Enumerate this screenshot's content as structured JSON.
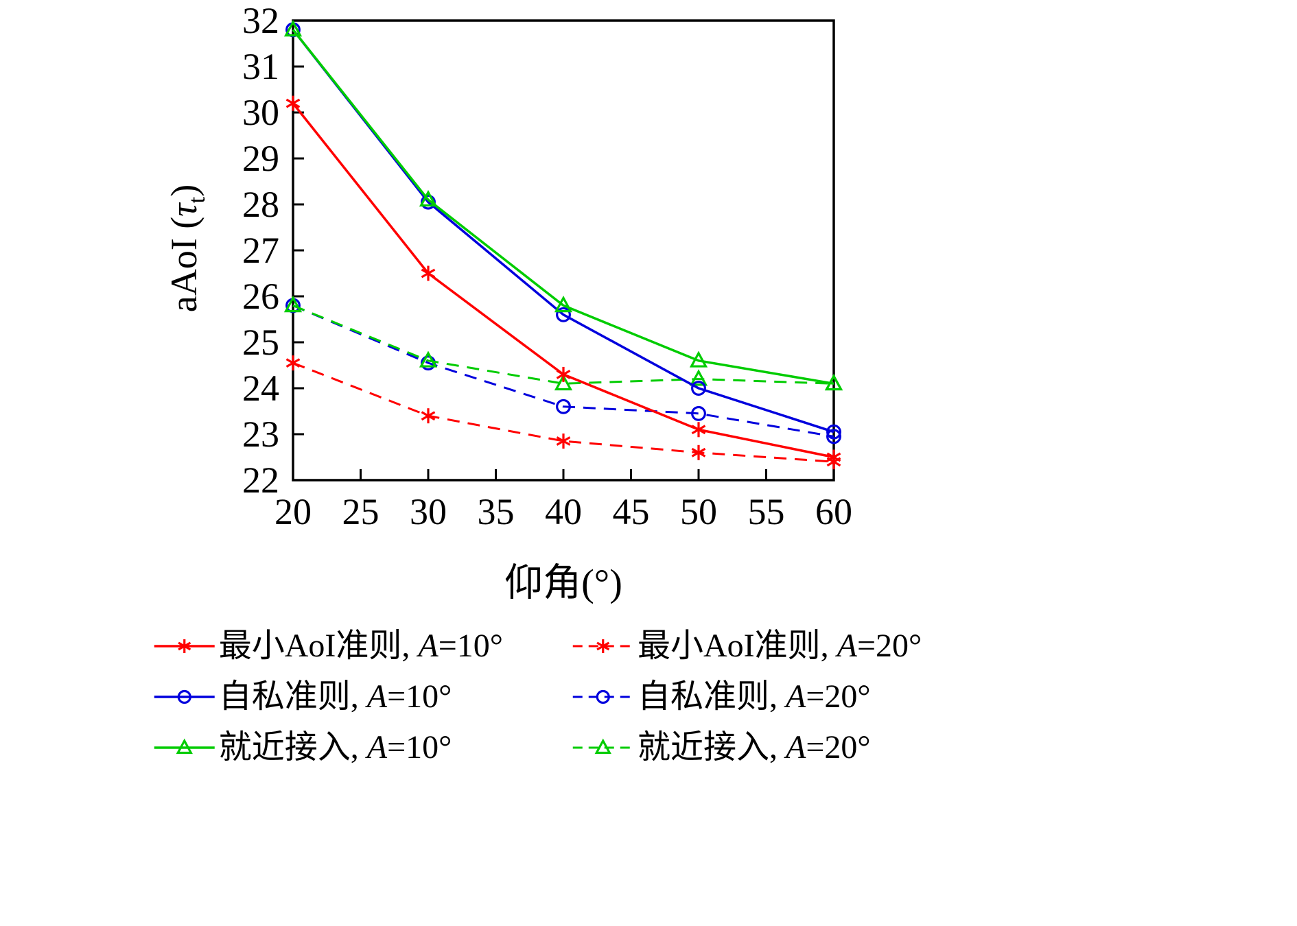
{
  "figure": {
    "background": "#ffffff"
  },
  "chart_data": {
    "type": "line",
    "title": "",
    "xlabel": "仰角(°)",
    "ylabel": "aAoI (τt)",
    "ylabel_parts": {
      "prefix": "aAoI (",
      "tau": "τ",
      "sub": "t",
      "suffix": ")"
    },
    "xlim": [
      20,
      60
    ],
    "ylim": [
      22,
      32
    ],
    "xticks": [
      20,
      25,
      30,
      35,
      40,
      45,
      50,
      55,
      60
    ],
    "yticks": [
      22,
      23,
      24,
      25,
      26,
      27,
      28,
      29,
      30,
      31,
      32
    ],
    "x": [
      20,
      30,
      40,
      50,
      60
    ],
    "grid": false,
    "legend_position": "below",
    "colors": {
      "red": "#ff0000",
      "blue": "#0000dd",
      "green": "#00cc00",
      "axis": "#000000"
    },
    "series": [
      {
        "name": "最小AoI准则, A=10°",
        "color": "#ff0000",
        "style": "solid",
        "marker": "asterisk",
        "values": [
          30.2,
          26.5,
          24.3,
          23.1,
          22.5
        ]
      },
      {
        "name": "最小AoI准则, A=20°",
        "color": "#ff0000",
        "style": "dashed",
        "marker": "asterisk",
        "values": [
          24.55,
          23.4,
          22.85,
          22.6,
          22.4
        ]
      },
      {
        "name": "自私准则, A=10°",
        "color": "#0000dd",
        "style": "solid",
        "marker": "circle",
        "values": [
          31.8,
          28.05,
          25.6,
          24.0,
          23.05
        ]
      },
      {
        "name": "自私准则, A=20°",
        "color": "#0000dd",
        "style": "dashed",
        "marker": "circle",
        "values": [
          25.8,
          24.55,
          23.6,
          23.45,
          22.95
        ]
      },
      {
        "name": "就近接入, A=10°",
        "color": "#00cc00",
        "style": "solid",
        "marker": "triangle",
        "values": [
          31.8,
          28.1,
          25.8,
          24.6,
          24.1
        ]
      },
      {
        "name": "就近接入, A=20°",
        "color": "#00cc00",
        "style": "dashed",
        "marker": "triangle",
        "values": [
          25.8,
          24.6,
          24.1,
          24.2,
          24.1
        ]
      }
    ]
  }
}
